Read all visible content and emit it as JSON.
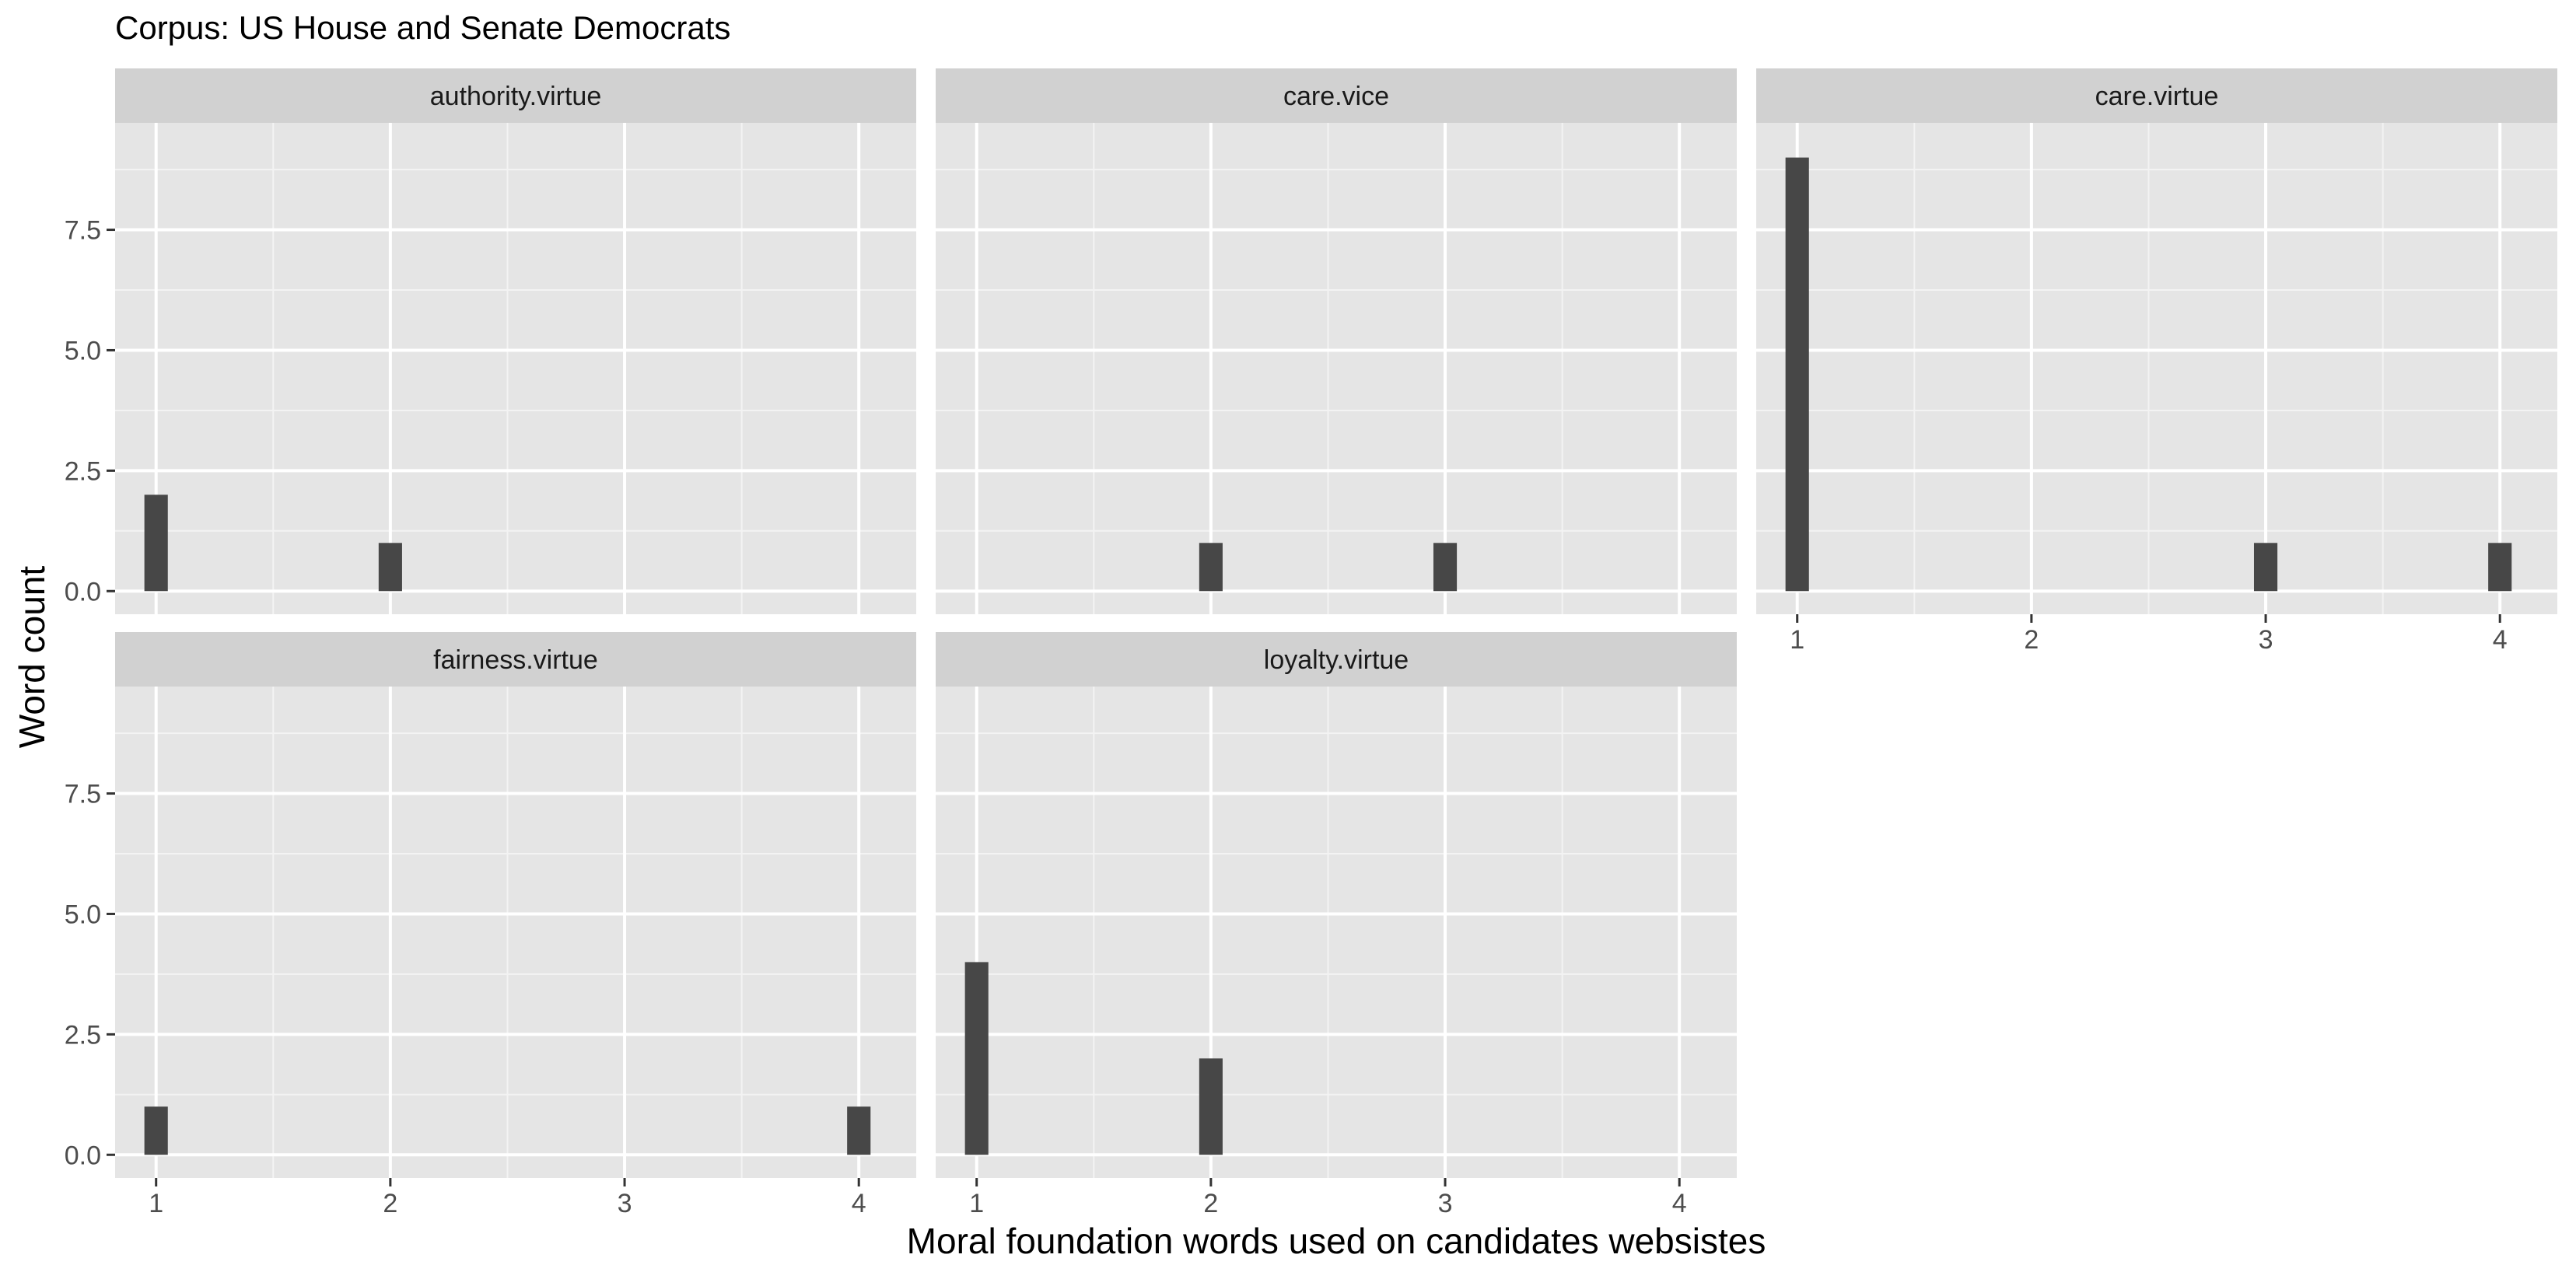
{
  "chart_data": {
    "type": "bar",
    "title": "Corpus: US House and Senate Democrats",
    "xlabel": "Moral foundation words used on candidates websistes",
    "ylabel": "Word count",
    "xlim": [
      0.825,
      4.245
    ],
    "ylim": [
      -0.48,
      9.72
    ],
    "x_ticks": [
      1,
      2,
      3,
      4
    ],
    "x_tick_labels": [
      "1",
      "2",
      "3",
      "4"
    ],
    "y_ticks": [
      0,
      2.5,
      5,
      7.5
    ],
    "y_tick_labels": [
      "0.0",
      "2.5",
      "5.0",
      "7.5"
    ],
    "bar_width": 0.1,
    "grid": true,
    "facets": [
      {
        "name": "authority.virtue",
        "bars": [
          {
            "x": 1,
            "count": 2
          },
          {
            "x": 2,
            "count": 1
          }
        ]
      },
      {
        "name": "care.vice",
        "bars": [
          {
            "x": 2,
            "count": 1
          },
          {
            "x": 3,
            "count": 1
          }
        ]
      },
      {
        "name": "care.virtue",
        "bars": [
          {
            "x": 1,
            "count": 9
          },
          {
            "x": 3,
            "count": 1
          },
          {
            "x": 4,
            "count": 1
          }
        ]
      },
      {
        "name": "fairness.virtue",
        "bars": [
          {
            "x": 1,
            "count": 1
          },
          {
            "x": 4,
            "count": 1
          }
        ]
      },
      {
        "name": "loyalty.virtue",
        "bars": [
          {
            "x": 1,
            "count": 4
          },
          {
            "x": 2,
            "count": 2
          }
        ]
      }
    ]
  },
  "colors": {
    "panel_background": "#e5e5e5",
    "strip_background": "#d1d1d1",
    "grid_major": "#ffffff",
    "grid_minor": "#f3f3f3",
    "bar_fill": "#474747",
    "tick_text": "#4d4d4d",
    "text": "#000000",
    "strip_text": "#1a1a1a"
  }
}
